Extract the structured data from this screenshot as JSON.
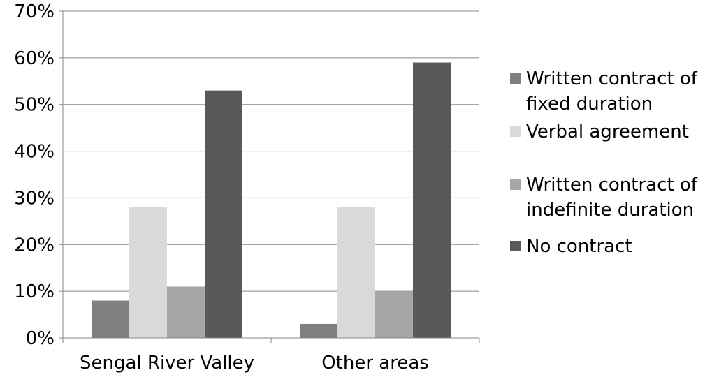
{
  "chart_data": {
    "type": "bar",
    "categories": [
      "Sengal River Valley",
      "Other areas"
    ],
    "series": [
      {
        "name": "Written contract of fixed duration",
        "values": [
          8,
          3
        ],
        "color": "#808080"
      },
      {
        "name": "Verbal agreement",
        "values": [
          28,
          28
        ],
        "color": "#d9d9d9"
      },
      {
        "name": "Written contract of indefinite duration",
        "values": [
          11,
          10
        ],
        "color": "#a6a6a6"
      },
      {
        "name": "No contract",
        "values": [
          53,
          59
        ],
        "color": "#595959"
      }
    ],
    "yticks": [
      "0%",
      "10%",
      "20%",
      "30%",
      "40%",
      "50%",
      "60%",
      "70%"
    ],
    "ylim": [
      0,
      70
    ],
    "grid": true,
    "legend_position": "right"
  }
}
